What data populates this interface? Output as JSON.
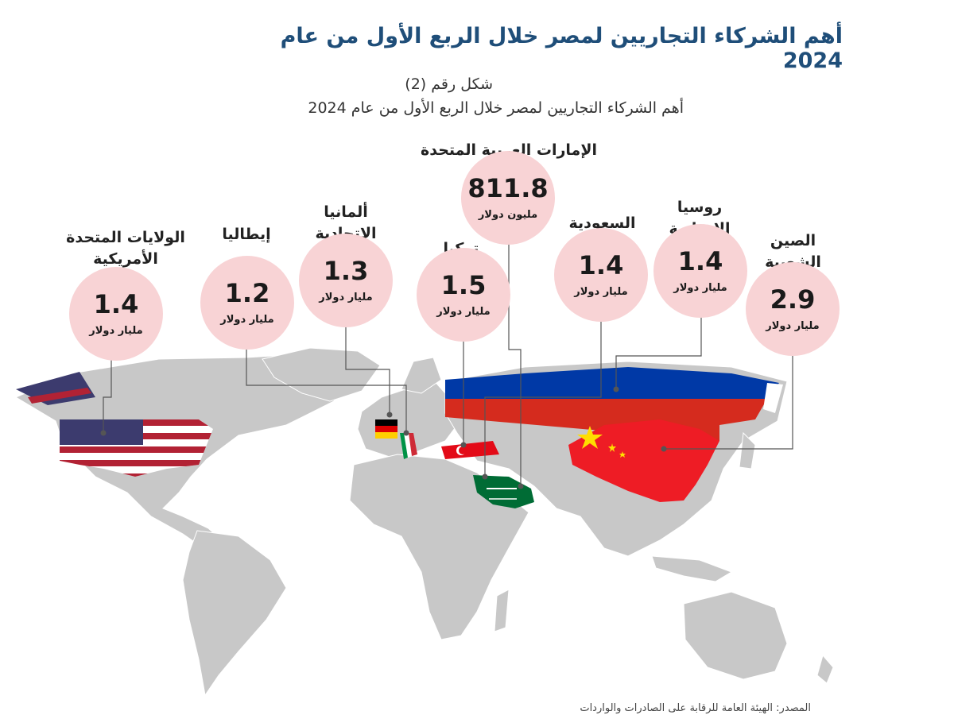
{
  "title": "أهم الشركاء التجاريين لمصر خلال الربع الأول من عام 2024",
  "figure_label": "شكل رقم (2)",
  "figure_subtitle": "أهم الشركاء التجاريين لمصر خلال الربع الأول من عام 2024",
  "colors": {
    "title": "#1f4e79",
    "bubble": "#f8d3d5",
    "land": "#c8c8c8"
  },
  "partners": [
    {
      "id": "usa",
      "name_line1": "الولايات المتحدة",
      "name_line2": "الأمريكية",
      "value": "1.4",
      "unit": "مليار دولار"
    },
    {
      "id": "italy",
      "name_line1": "إيطاليا",
      "name_line2": "",
      "value": "1.2",
      "unit": "مليار دولار"
    },
    {
      "id": "germany",
      "name_line1": "ألمانيا",
      "name_line2": "الاتحادية",
      "value": "1.3",
      "unit": "مليار دولار"
    },
    {
      "id": "turkey",
      "name_line1": "تركيا",
      "name_line2": "",
      "value": "1.5",
      "unit": "مليار دولار"
    },
    {
      "id": "uae",
      "name_line1": "الإمارات العربية المتحدة",
      "name_line2": "",
      "value": "811.8",
      "unit": "مليون دولار"
    },
    {
      "id": "saudi",
      "name_line1": "السعودية",
      "name_line2": "",
      "value": "1.4",
      "unit": "مليار دولار"
    },
    {
      "id": "russia",
      "name_line1": "روسيا",
      "name_line2": "الاتحادية",
      "value": "1.4",
      "unit": "مليار دولار"
    },
    {
      "id": "china",
      "name_line1": "الصين",
      "name_line2": "الشعبية",
      "value": "2.9",
      "unit": "مليار دولار"
    }
  ],
  "source": "المصدر: الهيئة العامة للرقابة على الصادرات والواردات"
}
